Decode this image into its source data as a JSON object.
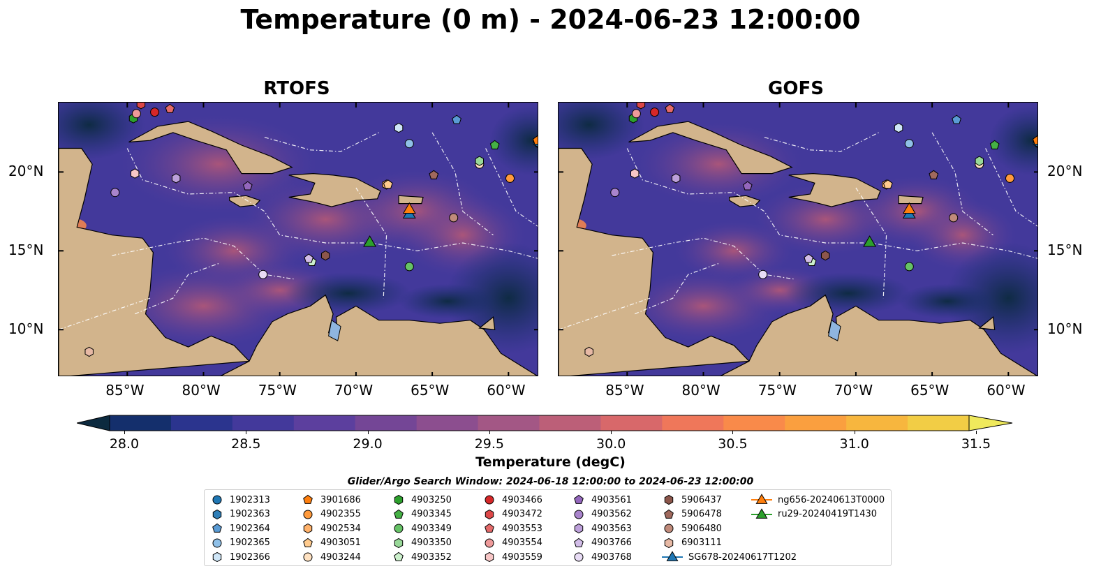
{
  "title": "Temperature (0 m) - 2024-06-23 12:00:00",
  "panels": [
    {
      "title": "RTOFS"
    },
    {
      "title": "GOFS"
    }
  ],
  "axes": {
    "x_ticks": [
      "85°W",
      "80°W",
      "75°W",
      "70°W",
      "65°W",
      "60°W"
    ],
    "y_ticks": [
      "20°N",
      "15°N",
      "10°N"
    ]
  },
  "colorbar": {
    "label": "Temperature (degC)",
    "ticks": [
      "28.0",
      "28.5",
      "29.0",
      "29.5",
      "30.0",
      "30.5",
      "31.0",
      "31.5"
    ],
    "colors": [
      "#0c2a3f",
      "#142f6c",
      "#2b348e",
      "#43399b",
      "#5c3f9e",
      "#744696",
      "#8c4e8f",
      "#a35785",
      "#bc5f78",
      "#d8686a",
      "#ef775a",
      "#f98a4a",
      "#fa9f3f",
      "#f7b63e",
      "#f2cd45",
      "#efe95c"
    ]
  },
  "search_window": "Glider/Argo Search Window: 2024-06-18 12:00:00 to 2024-06-23 12:00:00",
  "legend": [
    {
      "label": "1902313",
      "marker": "circle",
      "color": "#1f77b4"
    },
    {
      "label": "1902363",
      "marker": "hexagon",
      "color": "#2f7fb8"
    },
    {
      "label": "1902364",
      "marker": "pentagon",
      "color": "#5a9bd4"
    },
    {
      "label": "1902365",
      "marker": "circle",
      "color": "#8fc0e8"
    },
    {
      "label": "1902366",
      "marker": "hexagon",
      "color": "#cfe6f7"
    },
    {
      "label": "3901686",
      "marker": "pentagon",
      "color": "#ff7f0e"
    },
    {
      "label": "4902355",
      "marker": "circle",
      "color": "#ff9a3c"
    },
    {
      "label": "4902534",
      "marker": "hexagon",
      "color": "#ffb26b"
    },
    {
      "label": "4903051",
      "marker": "pentagon",
      "color": "#ffcb8e"
    },
    {
      "label": "4903244",
      "marker": "circle",
      "color": "#ffe2c2"
    },
    {
      "label": "4903250",
      "marker": "hexagon",
      "color": "#2ca02c"
    },
    {
      "label": "4903345",
      "marker": "pentagon",
      "color": "#45b045"
    },
    {
      "label": "4903349",
      "marker": "circle",
      "color": "#66c266"
    },
    {
      "label": "4903350",
      "marker": "hexagon",
      "color": "#98d898"
    },
    {
      "label": "4903352",
      "marker": "pentagon",
      "color": "#ccf0cc"
    },
    {
      "label": "4903466",
      "marker": "circle",
      "color": "#d62728"
    },
    {
      "label": "4903472",
      "marker": "hexagon",
      "color": "#dd4748"
    },
    {
      "label": "4903553",
      "marker": "pentagon",
      "color": "#e46a6a"
    },
    {
      "label": "4903554",
      "marker": "circle",
      "color": "#ee9a9a"
    },
    {
      "label": "4903559",
      "marker": "hexagon",
      "color": "#f7c6c6"
    },
    {
      "label": "4903561",
      "marker": "pentagon",
      "color": "#9467bd"
    },
    {
      "label": "4903562",
      "marker": "circle",
      "color": "#a984cc"
    },
    {
      "label": "4903563",
      "marker": "hexagon",
      "color": "#bda0da"
    },
    {
      "label": "4903766",
      "marker": "pentagon",
      "color": "#d2bde8"
    },
    {
      "label": "4903768",
      "marker": "circle",
      "color": "#e8dcf5"
    },
    {
      "label": "5906437",
      "marker": "hexagon",
      "color": "#8c564b"
    },
    {
      "label": "5906478",
      "marker": "pentagon",
      "color": "#a0695d"
    },
    {
      "label": "5906480",
      "marker": "circle",
      "color": "#c08b7b"
    },
    {
      "label": "6903111",
      "marker": "hexagon",
      "color": "#e7b9a5"
    },
    {
      "label": "SG678-20240617T1202",
      "marker": "triangle-line",
      "color": "#1f77b4"
    },
    {
      "label": "ng656-20240613T0000",
      "marker": "triangle-line",
      "color": "#ff7f0e"
    },
    {
      "label": "ru29-20240419T1430",
      "marker": "triangle-line",
      "color": "#2ca02c"
    }
  ],
  "chart_data": {
    "type": "heatmap",
    "title": "Temperature (0 m) - 2024-06-23 12:00:00",
    "panels": [
      "RTOFS",
      "GOFS"
    ],
    "xlim": [
      -89.5,
      -58
    ],
    "ylim": [
      7,
      24.4
    ],
    "x_ticks": [
      -85,
      -80,
      -75,
      -70,
      -65,
      -60
    ],
    "y_ticks": [
      20,
      15,
      10
    ],
    "colorbar_range": [
      28.0,
      31.5
    ],
    "colorbar_label": "Temperature (degC)",
    "extend": "both",
    "observations": [
      {
        "label": "1902313",
        "lon": -58.0,
        "lat": 21.8
      },
      {
        "label": "1902363",
        "lon": -58.1,
        "lat": 21.9
      },
      {
        "label": "1902364",
        "lon": -63.4,
        "lat": 23.3
      },
      {
        "label": "1902365",
        "lon": -66.5,
        "lat": 21.8
      },
      {
        "label": "1902366",
        "lon": -67.2,
        "lat": 22.8
      },
      {
        "label": "3901686",
        "lon": -58.1,
        "lat": 22.0
      },
      {
        "label": "4902355",
        "lon": -59.9,
        "lat": 19.6
      },
      {
        "label": "4902534",
        "lon": -68.0,
        "lat": 19.2
      },
      {
        "label": "4903051",
        "lon": -67.9,
        "lat": 19.2
      },
      {
        "label": "4903244",
        "lon": -61.9,
        "lat": 20.5
      },
      {
        "label": "4903250",
        "lon": -84.6,
        "lat": 23.4
      },
      {
        "label": "4903345",
        "lon": -60.9,
        "lat": 21.7
      },
      {
        "label": "4903349",
        "lon": -66.5,
        "lat": 14.0
      },
      {
        "label": "4903350",
        "lon": -61.9,
        "lat": 20.7
      },
      {
        "label": "4903352",
        "lon": -72.9,
        "lat": 14.3
      },
      {
        "label": "4903466",
        "lon": -83.2,
        "lat": 23.8
      },
      {
        "label": "4903472",
        "lon": -84.1,
        "lat": 24.3
      },
      {
        "label": "4903553",
        "lon": -82.2,
        "lat": 24.0
      },
      {
        "label": "4903554",
        "lon": -84.4,
        "lat": 23.7
      },
      {
        "label": "4903559",
        "lon": -84.5,
        "lat": 19.9
      },
      {
        "label": "4903561",
        "lon": -77.1,
        "lat": 19.1
      },
      {
        "label": "4903562",
        "lon": -85.8,
        "lat": 18.7
      },
      {
        "label": "4903563",
        "lon": -81.8,
        "lat": 19.6
      },
      {
        "label": "4903766",
        "lon": -73.1,
        "lat": 14.5
      },
      {
        "label": "4903768",
        "lon": -76.1,
        "lat": 13.5
      },
      {
        "label": "5906437",
        "lon": -72.0,
        "lat": 14.7
      },
      {
        "label": "5906478",
        "lon": -64.9,
        "lat": 19.8
      },
      {
        "label": "5906480",
        "lon": -63.6,
        "lat": 17.1
      },
      {
        "label": "6903111",
        "lon": -87.5,
        "lat": 8.6
      },
      {
        "label": "SG678-20240617T1202",
        "lon": -66.5,
        "lat": 17.3
      },
      {
        "label": "ng656-20240613T0000",
        "lon": -66.5,
        "lat": 17.6
      },
      {
        "label": "ru29-20240419T1430",
        "lon": -69.1,
        "lat": 15.5
      }
    ]
  }
}
